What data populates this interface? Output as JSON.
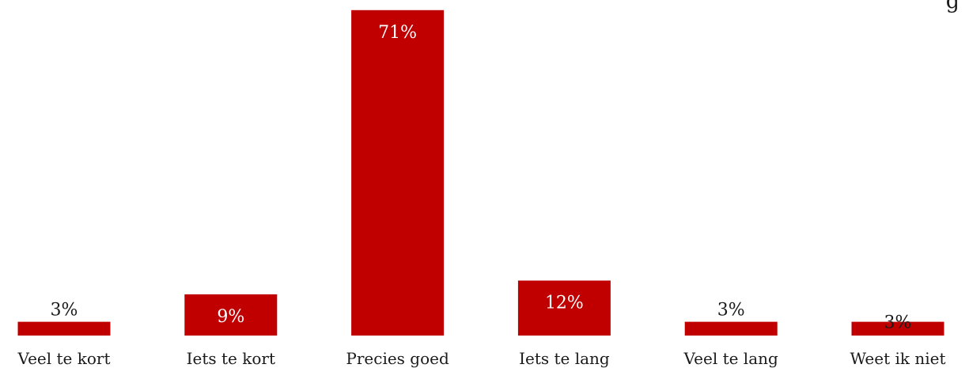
{
  "chart_data": {
    "type": "bar",
    "title": "",
    "categories": [
      "Veel te kort",
      "Iets te kort",
      "Precies goed",
      "Iets te lang",
      "Veel te lang",
      "Weet ik niet"
    ],
    "values": [
      3,
      9,
      71,
      12,
      3,
      3
    ],
    "value_labels": [
      "3%",
      "9%",
      "71%",
      "12%",
      "3%",
      "3%"
    ],
    "unit": "%",
    "ylim": [
      0,
      72
    ],
    "grid": false,
    "legend": "none",
    "bar_color": "#c00000",
    "label_inside_color": "#ffffff",
    "label_outside_color": "#1a1a1a",
    "tick_label_color": "#1a1a1a"
  }
}
